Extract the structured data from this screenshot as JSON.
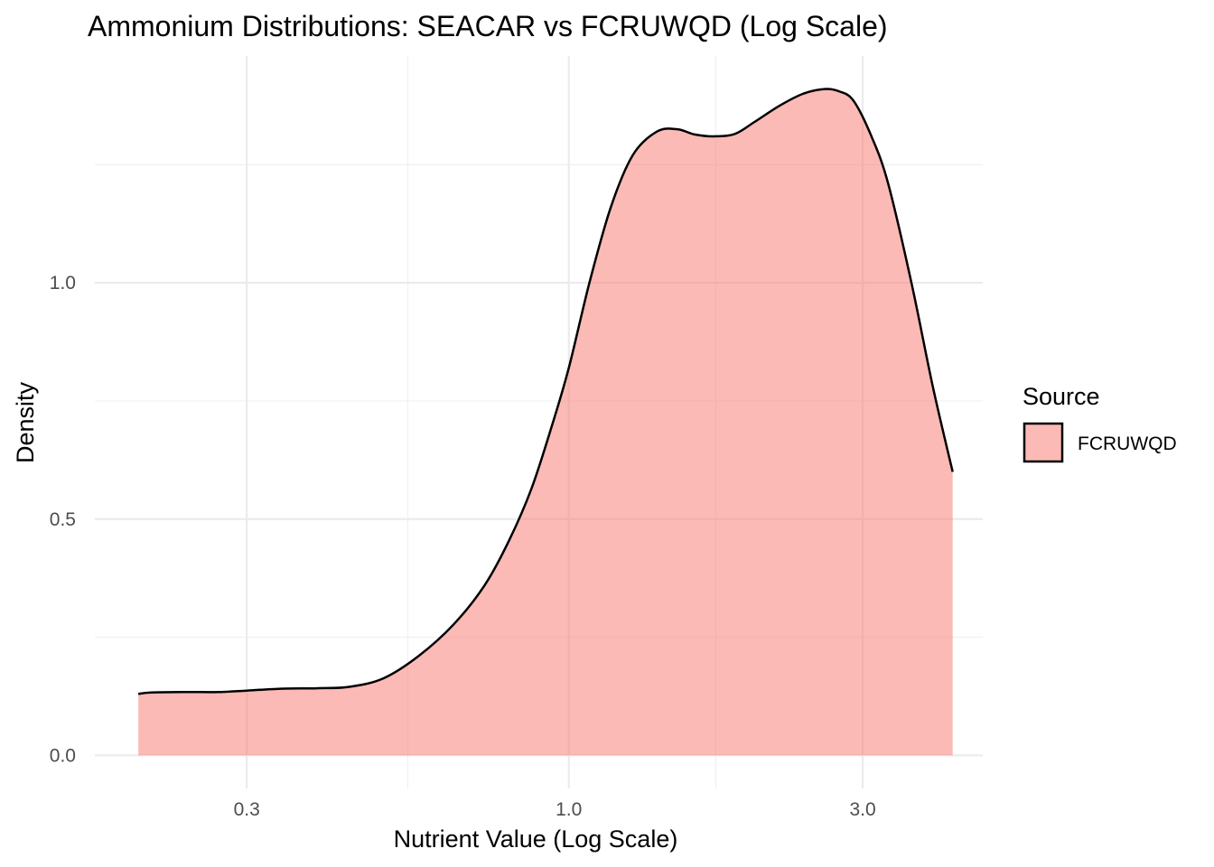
{
  "chart_data": {
    "type": "area",
    "title": "Ammonium Distributions: SEACAR vs FCRUWQD (Log Scale)",
    "xlabel": "Nutrient Value (Log Scale)",
    "ylabel": "Density",
    "x_scale": "log10",
    "xlim": [
      0.17,
      4.7
    ],
    "ylim": [
      -0.07,
      1.48
    ],
    "x_ticks": [
      0.3,
      1.0,
      3.0
    ],
    "x_tick_labels": [
      "0.3",
      "1.0",
      "3.0"
    ],
    "y_ticks": [
      0.0,
      0.5,
      1.0
    ],
    "y_tick_labels": [
      "0.0",
      "0.5",
      "1.0"
    ],
    "grid": true,
    "legend": {
      "title": "Source",
      "position": "right"
    },
    "series": [
      {
        "name": "FCRUWQD",
        "fill": "#f8766d",
        "fill_opacity": 0.5,
        "stroke": "#000000",
        "x": [
          0.2,
          0.21,
          0.24,
          0.27,
          0.3,
          0.34,
          0.39,
          0.44,
          0.5,
          0.57,
          0.65,
          0.73,
          0.8,
          0.87,
          0.94,
          1.0,
          1.08,
          1.17,
          1.27,
          1.39,
          1.5,
          1.6,
          1.72,
          1.86,
          2.0,
          2.2,
          2.4,
          2.6,
          2.75,
          2.9,
          3.1,
          3.3,
          3.6,
          3.9,
          4.2
        ],
        "y": [
          0.13,
          0.133,
          0.134,
          0.134,
          0.137,
          0.141,
          0.142,
          0.145,
          0.163,
          0.21,
          0.277,
          0.36,
          0.455,
          0.565,
          0.7,
          0.82,
          1.0,
          1.16,
          1.27,
          1.32,
          1.325,
          1.314,
          1.31,
          1.315,
          1.34,
          1.375,
          1.4,
          1.41,
          1.405,
          1.385,
          1.31,
          1.21,
          1.0,
          0.78,
          0.6
        ]
      }
    ]
  }
}
